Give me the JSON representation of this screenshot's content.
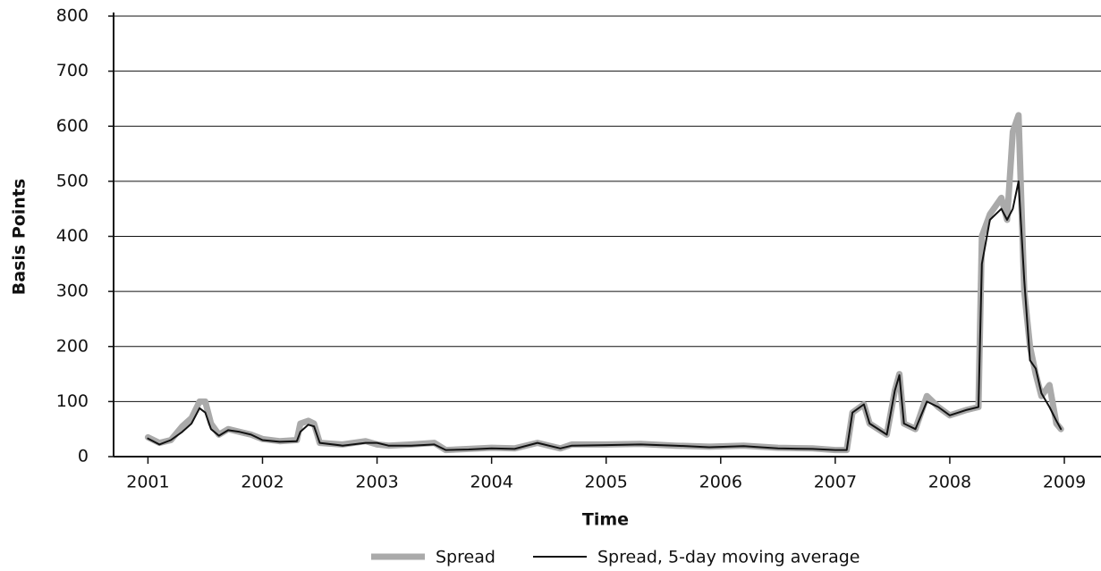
{
  "chart_data": {
    "type": "line",
    "y_label": "Basis Points",
    "x_label": "Time",
    "x": [
      2001.0,
      2001.1,
      2001.2,
      2001.3,
      2001.38,
      2001.45,
      2001.5,
      2001.55,
      2001.62,
      2001.7,
      2001.8,
      2001.9,
      2002.0,
      2002.15,
      2002.3,
      2002.33,
      2002.4,
      2002.45,
      2002.5,
      2002.7,
      2002.9,
      2003.0,
      2003.1,
      2003.3,
      2003.5,
      2003.6,
      2003.8,
      2004.0,
      2004.2,
      2004.4,
      2004.6,
      2004.7,
      2005.0,
      2005.3,
      2005.6,
      2005.9,
      2006.2,
      2006.5,
      2006.8,
      2007.0,
      2007.1,
      2007.15,
      2007.25,
      2007.3,
      2007.45,
      2007.52,
      2007.56,
      2007.6,
      2007.7,
      2007.8,
      2007.9,
      2008.0,
      2008.15,
      2008.25,
      2008.28,
      2008.35,
      2008.45,
      2008.5,
      2008.55,
      2008.6,
      2008.65,
      2008.7,
      2008.75,
      2008.8,
      2008.87,
      2008.93,
      2008.97
    ],
    "series": [
      {
        "name": "Spread",
        "color": "#aaaaaa",
        "width": 7,
        "values": [
          35,
          25,
          30,
          55,
          70,
          100,
          100,
          60,
          40,
          50,
          45,
          40,
          32,
          28,
          30,
          60,
          65,
          60,
          25,
          22,
          28,
          22,
          20,
          22,
          25,
          12,
          14,
          16,
          15,
          25,
          15,
          22,
          22,
          23,
          20,
          18,
          20,
          16,
          15,
          12,
          12,
          80,
          95,
          60,
          40,
          120,
          150,
          60,
          50,
          110,
          90,
          75,
          85,
          90,
          400,
          440,
          470,
          430,
          590,
          620,
          300,
          200,
          150,
          110,
          130,
          60,
          50
        ]
      },
      {
        "name": "Spread, 5-day moving average",
        "color": "#111111",
        "width": 2,
        "values": [
          33,
          22,
          30,
          45,
          60,
          88,
          80,
          50,
          38,
          48,
          45,
          40,
          30,
          27,
          28,
          45,
          58,
          55,
          25,
          20,
          25,
          25,
          20,
          20,
          22,
          12,
          13,
          15,
          14,
          25,
          15,
          20,
          21,
          22,
          20,
          17,
          19,
          15,
          14,
          12,
          12,
          80,
          95,
          60,
          40,
          120,
          148,
          60,
          50,
          100,
          90,
          75,
          85,
          90,
          350,
          430,
          450,
          430,
          450,
          500,
          320,
          175,
          160,
          115,
          90,
          65,
          50
        ]
      }
    ],
    "xlim": [
      2000.7,
      2009.32
    ],
    "xticks": [
      2001,
      2002,
      2003,
      2004,
      2005,
      2006,
      2007,
      2008,
      2009
    ],
    "ylim": [
      0,
      800
    ],
    "yticks": [
      0,
      100,
      200,
      300,
      400,
      500,
      600,
      700,
      800
    ],
    "grid": true
  }
}
